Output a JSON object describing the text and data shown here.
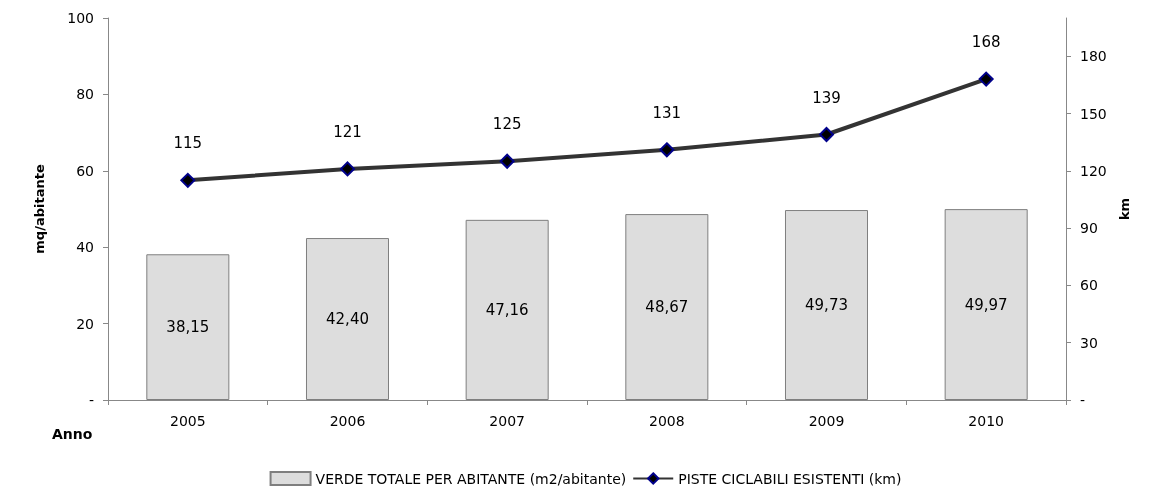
{
  "chart_data": {
    "type": "bar",
    "xlabel": "Anno",
    "ylabel": "mq/abitante",
    "y2label": "km",
    "categories": [
      "2005",
      "2006",
      "2007",
      "2008",
      "2009",
      "2010"
    ],
    "series": [
      {
        "name": "VERDE TOTALE PER ABITANTE (m2/abitante)",
        "color": "#dddddd",
        "values": [
          38.15,
          42.4,
          47.16,
          48.67,
          49.73,
          49.97
        ],
        "value_labels": [
          "38,15",
          "42,40",
          "47,16",
          "48,67",
          "49,73",
          "49,97"
        ]
      },
      {
        "name": "PISTE CICLABILI ESISTENTI (km)",
        "type": "line",
        "axis": "y2",
        "color": "#333333",
        "marker": "diamond",
        "values": [
          115,
          121,
          125,
          131,
          139,
          168
        ],
        "value_labels": [
          "115",
          "121",
          "125",
          "131",
          "139",
          "168"
        ]
      }
    ],
    "ylim": [
      0,
      100
    ],
    "yticks": [
      {
        "value": 0,
        "label": "-"
      },
      20,
      40,
      60,
      80,
      100
    ],
    "y2lim": [
      0,
      200
    ],
    "y2ticks": [
      {
        "value": 0,
        "label": "-"
      },
      30,
      60,
      90,
      120,
      150,
      180
    ],
    "grid": false,
    "legend": "bottom"
  }
}
